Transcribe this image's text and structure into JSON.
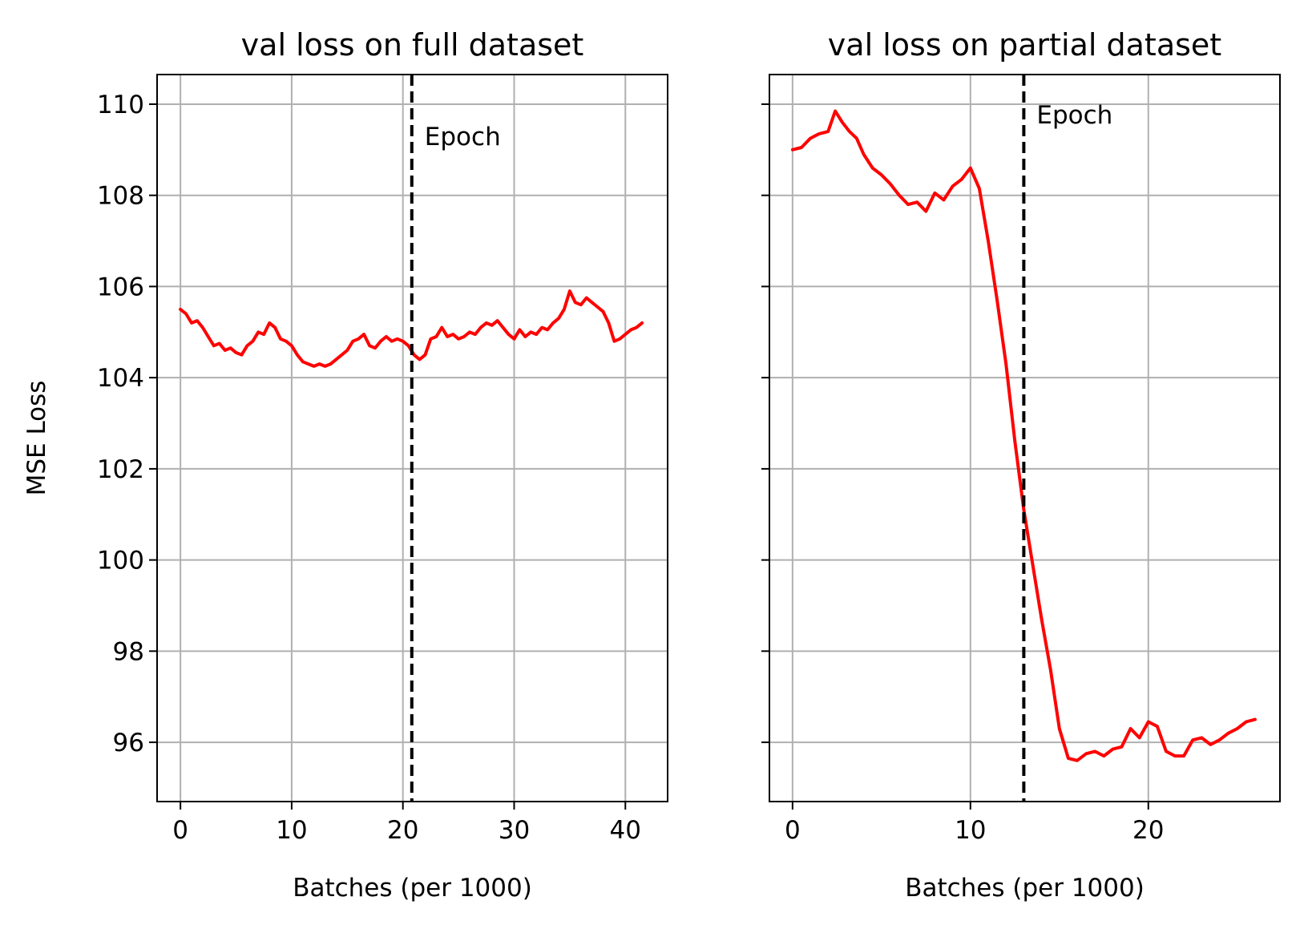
{
  "chart_data": [
    {
      "type": "line",
      "title": "val loss on full dataset",
      "xlabel": "Batches (per 1000)",
      "ylabel": "MSE Loss",
      "xlim": [
        -2.1,
        43.8
      ],
      "ylim": [
        94.7,
        110.65
      ],
      "xticks": [
        0,
        10,
        20,
        30,
        40
      ],
      "yticks": [
        96,
        98,
        100,
        102,
        104,
        106,
        108,
        110
      ],
      "grid": true,
      "color": "#ff0000",
      "series": [
        {
          "x": [
            0,
            0.5,
            1,
            1.5,
            2,
            2.5,
            3,
            3.5,
            4,
            4.5,
            5,
            5.5,
            6,
            6.5,
            7,
            7.5,
            8,
            8.5,
            9,
            9.5,
            10,
            10.5,
            11,
            11.5,
            12,
            12.5,
            13,
            13.5,
            14,
            14.5,
            15,
            15.5,
            16,
            16.5,
            17,
            17.5,
            18,
            18.5,
            19,
            19.5,
            20,
            20.5,
            21,
            21.5,
            22,
            22.5,
            23,
            23.5,
            24,
            24.5,
            25,
            25.5,
            26,
            26.5,
            27,
            27.5,
            28,
            28.5,
            29,
            29.5,
            30,
            30.5,
            31,
            31.5,
            32,
            32.5,
            33,
            33.5,
            34,
            34.5,
            35,
            35.5,
            36,
            36.5,
            37,
            37.5,
            38,
            38.5,
            39,
            39.5,
            40,
            40.5,
            41,
            41.5
          ],
          "values": [
            105.5,
            105.4,
            105.2,
            105.25,
            105.1,
            104.9,
            104.7,
            104.75,
            104.6,
            104.65,
            104.55,
            104.5,
            104.7,
            104.8,
            105.0,
            104.95,
            105.2,
            105.1,
            104.85,
            104.8,
            104.7,
            104.5,
            104.35,
            104.3,
            104.25,
            104.3,
            104.25,
            104.3,
            104.4,
            104.5,
            104.6,
            104.8,
            104.85,
            104.95,
            104.7,
            104.65,
            104.8,
            104.9,
            104.8,
            104.85,
            104.8,
            104.7,
            104.5,
            104.4,
            104.5,
            104.85,
            104.9,
            105.1,
            104.9,
            104.95,
            104.85,
            104.9,
            105.0,
            104.95,
            105.1,
            105.2,
            105.15,
            105.25,
            105.1,
            104.95,
            104.85,
            105.05,
            104.9,
            105.0,
            104.95,
            105.1,
            105.05,
            105.2,
            105.3,
            105.5,
            105.9,
            105.65,
            105.6,
            105.75,
            105.65,
            105.55,
            105.45,
            105.2,
            104.8,
            104.85,
            104.95,
            105.05,
            105.1,
            105.2
          ]
        }
      ],
      "annotation": {
        "text": "Epoch",
        "x": 20.8
      }
    },
    {
      "type": "line",
      "title": "val loss on partial dataset",
      "xlabel": "Batches (per 1000)",
      "ylabel": "",
      "xlim": [
        -1.3,
        27.4
      ],
      "ylim": [
        94.7,
        110.65
      ],
      "xticks": [
        0,
        10,
        20
      ],
      "yticks": [
        96,
        98,
        100,
        102,
        104,
        106,
        108,
        110
      ],
      "grid": true,
      "color": "#ff0000",
      "series": [
        {
          "x": [
            0,
            0.5,
            1,
            1.5,
            2,
            2.4,
            2.8,
            3.2,
            3.6,
            4,
            4.5,
            5,
            5.5,
            6,
            6.5,
            7,
            7.5,
            8,
            8.5,
            9,
            9.5,
            10,
            10.5,
            11,
            11.5,
            12,
            12.5,
            13,
            13.5,
            14,
            14.5,
            15,
            15.5,
            16,
            16.5,
            17,
            17.5,
            18,
            18.5,
            19,
            19.5,
            20,
            20.5,
            21,
            21.5,
            22,
            22.5,
            23,
            23.5,
            24,
            24.5,
            25,
            25.5,
            26
          ],
          "values": [
            109.0,
            109.05,
            109.25,
            109.35,
            109.4,
            109.85,
            109.6,
            109.4,
            109.25,
            108.9,
            108.6,
            108.45,
            108.25,
            108.0,
            107.8,
            107.85,
            107.65,
            108.05,
            107.9,
            108.2,
            108.35,
            108.6,
            108.15,
            107.0,
            105.7,
            104.3,
            102.6,
            101.1,
            99.9,
            98.7,
            97.6,
            96.3,
            95.65,
            95.6,
            95.75,
            95.8,
            95.7,
            95.85,
            95.9,
            96.3,
            96.1,
            96.45,
            96.35,
            95.8,
            95.7,
            95.7,
            96.05,
            96.1,
            95.95,
            96.05,
            96.2,
            96.3,
            96.45,
            96.5
          ]
        }
      ],
      "annotation": {
        "text": "Epoch",
        "x": 13.0
      }
    }
  ]
}
